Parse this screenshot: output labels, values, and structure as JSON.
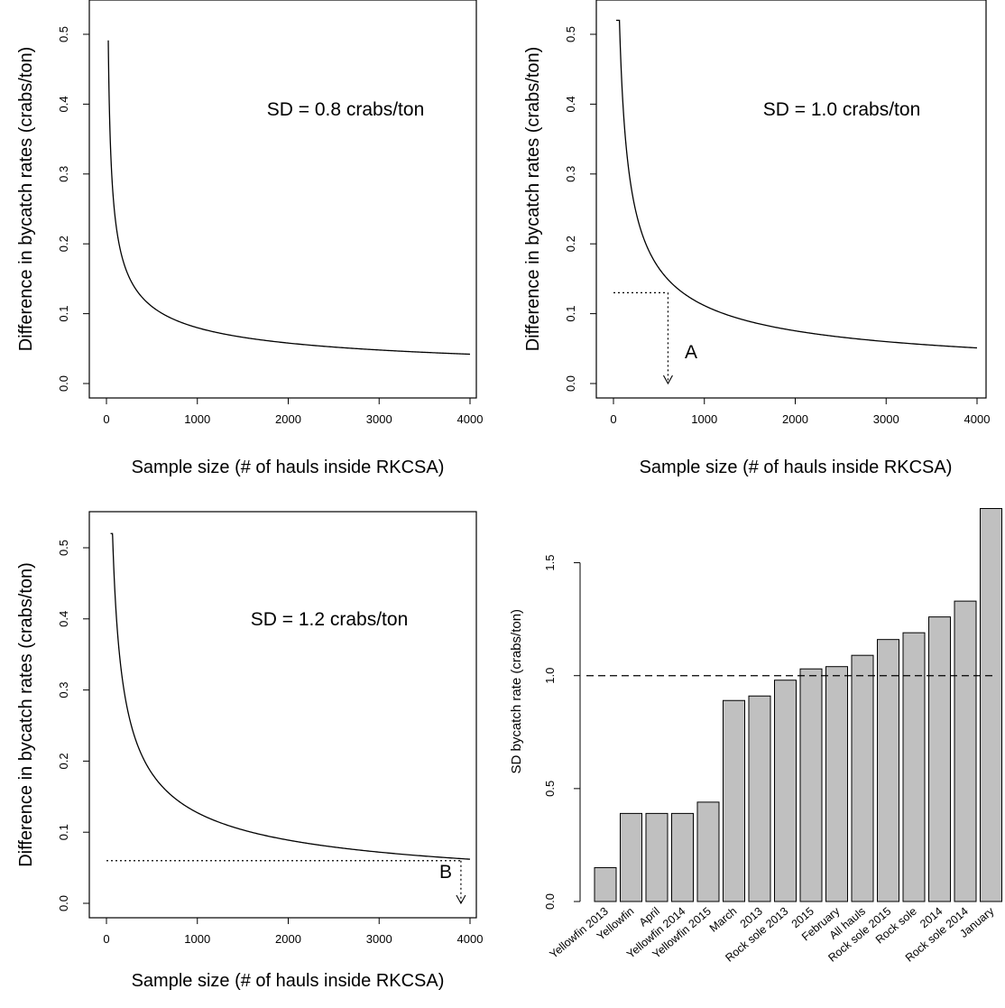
{
  "chart_data": [
    {
      "type": "line",
      "xlabel": "Sample size (# of hauls inside RKCSA)",
      "ylabel": "Difference in bycatch rates (crabs/ton)",
      "annotation": "SD = 0.8 crabs/ton",
      "xlim": [
        0,
        4000
      ],
      "ylim": [
        0,
        0.5
      ],
      "x_ticks": [
        "0",
        "1000",
        "2000",
        "3000",
        "4000"
      ],
      "y_ticks": [
        "0.0",
        "0.1",
        "0.2",
        "0.3",
        "0.4",
        "0.5"
      ],
      "series": [
        {
          "x": [
            20,
            50,
            100,
            200,
            300,
            400,
            500,
            750,
            1000,
            1500,
            2000,
            2500,
            3000,
            3500,
            4000
          ],
          "y": [
            0.5,
            0.374,
            0.265,
            0.187,
            0.153,
            0.132,
            0.118,
            0.097,
            0.084,
            0.068,
            0.059,
            0.053,
            0.048,
            0.045,
            0.042
          ]
        }
      ]
    },
    {
      "type": "line",
      "xlabel": "Sample size (# of hauls inside RKCSA)",
      "ylabel": "Difference in bycatch rates (crabs/ton)",
      "annotation": "SD = 1.0 crabs/ton",
      "marker_label": "A",
      "marker_point": {
        "x": 600,
        "y": 0.13
      },
      "xlim": [
        0,
        4000
      ],
      "ylim": [
        0,
        0.5
      ],
      "x_ticks": [
        "0",
        "1000",
        "2000",
        "3000",
        "4000"
      ],
      "y_ticks": [
        "0.0",
        "0.1",
        "0.2",
        "0.3",
        "0.4",
        "0.5"
      ],
      "series": [
        {
          "x": [
            30,
            50,
            100,
            200,
            300,
            400,
            500,
            600,
            750,
            1000,
            1500,
            2000,
            2500,
            3000,
            3500,
            4000
          ],
          "y": [
            0.5,
            0.46,
            0.327,
            0.231,
            0.189,
            0.164,
            0.146,
            0.133,
            0.119,
            0.103,
            0.084,
            0.073,
            0.065,
            0.06,
            0.055,
            0.051
          ]
        }
      ]
    },
    {
      "type": "line",
      "xlabel": "Sample size (# of hauls inside RKCSA)",
      "ylabel": "Difference in bycatch rates (crabs/ton)",
      "annotation": "SD = 1.2 crabs/ton",
      "marker_label": "B",
      "marker_point": {
        "x": 3900,
        "y": 0.06
      },
      "xlim": [
        0,
        4000
      ],
      "ylim": [
        0,
        0.5
      ],
      "x_ticks": [
        "0",
        "1000",
        "2000",
        "3000",
        "4000"
      ],
      "y_ticks": [
        "0.0",
        "0.1",
        "0.2",
        "0.3",
        "0.4",
        "0.5"
      ],
      "series": [
        {
          "x": [
            45,
            75,
            100,
            200,
            300,
            400,
            500,
            750,
            1000,
            1500,
            2000,
            2500,
            3000,
            3500,
            4000
          ],
          "y": [
            0.5,
            0.43,
            0.392,
            0.277,
            0.226,
            0.196,
            0.175,
            0.143,
            0.124,
            0.101,
            0.088,
            0.078,
            0.072,
            0.066,
            0.062
          ]
        }
      ]
    },
    {
      "type": "bar",
      "ylabel": "SD bycatch rate (crabs/ton)",
      "reference_line": 1.0,
      "ylim": [
        0,
        1.75
      ],
      "y_ticks": [
        "0.0",
        "0.5",
        "1.0",
        "1.5"
      ],
      "categories": [
        "Yellowfin 2013",
        "Yellowfin",
        "April",
        "Yellowfin 2014",
        "Yellowfin 2015",
        "March",
        "2013",
        "Rock sole 2013",
        "2015",
        "February",
        "All hauls",
        "Rock sole 2015",
        "Rock sole",
        "2014",
        "Rock sole 2014",
        "January"
      ],
      "values": [
        0.15,
        0.39,
        0.39,
        0.39,
        0.44,
        0.89,
        0.91,
        0.98,
        1.03,
        1.04,
        1.09,
        1.16,
        1.19,
        1.26,
        1.33,
        1.74
      ],
      "bar_color": "#c0c0c0"
    }
  ]
}
